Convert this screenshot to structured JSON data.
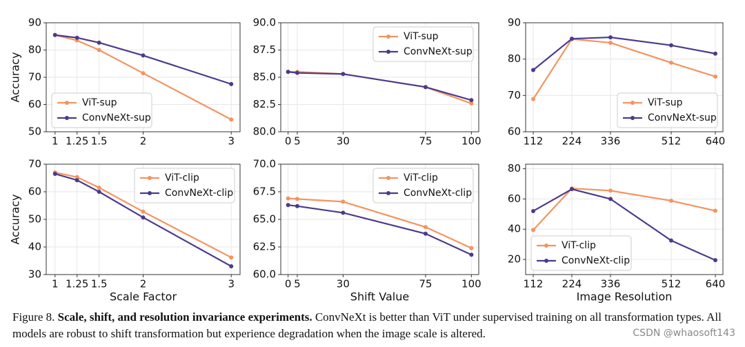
{
  "chart_data": [
    {
      "type": "line",
      "ylabel": "Accuracy",
      "x": [
        1,
        1.25,
        1.5,
        2,
        3
      ],
      "xlim": [
        0.9,
        3.1
      ],
      "xticks": [
        1,
        1.25,
        1.5,
        2,
        3
      ],
      "ylim": [
        50,
        90
      ],
      "yticks": [
        50,
        60,
        70,
        80,
        90
      ],
      "grid": true,
      "legend": "lower left",
      "series": [
        {
          "name": "ViT-sup",
          "color": "#f4935e",
          "values": [
            85.5,
            83.5,
            80,
            71.5,
            54.5
          ]
        },
        {
          "name": "ConvNeXt-sup",
          "color": "#4b3a8c",
          "values": [
            85.5,
            84.5,
            82.7,
            78,
            67.5
          ]
        }
      ]
    },
    {
      "type": "line",
      "x": [
        0,
        5,
        30,
        75,
        100
      ],
      "xlim": [
        -4,
        104
      ],
      "xticks": [
        0,
        5,
        30,
        75,
        100
      ],
      "ylim": [
        80,
        90
      ],
      "yticks": [
        {
          "value": 80,
          "label": "80.0"
        },
        82.5,
        {
          "value": 85,
          "label": "85.0"
        },
        87.5,
        {
          "value": 90,
          "label": "90.0"
        }
      ],
      "grid": true,
      "legend": "upper right",
      "series": [
        {
          "name": "ViT-sup",
          "color": "#f4935e",
          "values": [
            85.5,
            85.5,
            85.3,
            84.1,
            82.6
          ]
        },
        {
          "name": "ConvNeXt-sup",
          "color": "#4b3a8c",
          "values": [
            85.5,
            85.4,
            85.3,
            84.1,
            82.9
          ]
        }
      ]
    },
    {
      "type": "line",
      "x": [
        112,
        224,
        336,
        512,
        640
      ],
      "xlim": [
        90,
        662
      ],
      "xticks": [
        112,
        224,
        336,
        512,
        640
      ],
      "ylim": [
        60,
        90
      ],
      "yticks": [
        60,
        70,
        80,
        90
      ],
      "grid": true,
      "legend": "lower right",
      "series": [
        {
          "name": "ViT-sup",
          "color": "#f4935e",
          "values": [
            69,
            85.5,
            84.5,
            79,
            75.2
          ]
        },
        {
          "name": "ConvNeXt-sup",
          "color": "#4b3a8c",
          "values": [
            77,
            85.6,
            86,
            83.8,
            81.5
          ]
        }
      ]
    },
    {
      "type": "line",
      "ylabel": "Accuracy",
      "xlabel": "Scale Factor",
      "x": [
        1,
        1.25,
        1.5,
        2,
        3
      ],
      "xlim": [
        0.9,
        3.1
      ],
      "xticks": [
        1,
        1.25,
        1.5,
        2,
        3
      ],
      "ylim": [
        30,
        70
      ],
      "yticks": [
        30,
        40,
        50,
        60,
        70
      ],
      "grid": true,
      "legend": "upper right",
      "series": [
        {
          "name": "ViT-clip",
          "color": "#f4935e",
          "values": [
            67,
            65.3,
            61.5,
            52.8,
            36.2
          ]
        },
        {
          "name": "ConvNeXt-clip",
          "color": "#4b3a8c",
          "values": [
            66.5,
            64.2,
            60,
            50.7,
            33
          ]
        }
      ]
    },
    {
      "type": "line",
      "xlabel": "Shift Value",
      "x": [
        0,
        5,
        30,
        75,
        100
      ],
      "xlim": [
        -4,
        104
      ],
      "xticks": [
        0,
        5,
        30,
        75,
        100
      ],
      "ylim": [
        60,
        70
      ],
      "yticks": [
        {
          "value": 60,
          "label": "60.0"
        },
        62.5,
        {
          "value": 65,
          "label": "65.0"
        },
        67.5,
        {
          "value": 70,
          "label": "70.0"
        }
      ],
      "grid": true,
      "legend": "upper right",
      "series": [
        {
          "name": "ViT-clip",
          "color": "#f4935e",
          "values": [
            66.9,
            66.85,
            66.6,
            64.3,
            62.4
          ]
        },
        {
          "name": "ConvNeXt-clip",
          "color": "#4b3a8c",
          "values": [
            66.3,
            66.2,
            65.6,
            63.7,
            61.8
          ]
        }
      ]
    },
    {
      "type": "line",
      "xlabel": "Image Resolution",
      "x": [
        112,
        224,
        336,
        512,
        640
      ],
      "xlim": [
        90,
        662
      ],
      "xticks": [
        112,
        224,
        336,
        512,
        640
      ],
      "ylim": [
        10,
        83
      ],
      "yticks": [
        20,
        40,
        60,
        80
      ],
      "grid": true,
      "legend": "lower left",
      "series": [
        {
          "name": "ViT-clip",
          "color": "#f4935e",
          "values": [
            39.5,
            67,
            65.5,
            58.8,
            52.2
          ]
        },
        {
          "name": "ConvNeXt-clip",
          "color": "#4b3a8c",
          "values": [
            52,
            66.5,
            60,
            32.5,
            19.5
          ]
        }
      ]
    }
  ],
  "caption": {
    "label": "Figure 8.",
    "heading": "Scale, shift, and resolution invariance experiments.",
    "text": "ConvNeXt is better than ViT under supervised training on all transformation types. All models are robust to shift transformation but experience degradation when the image scale is altered."
  },
  "watermark": "CSDN @whaosoft143"
}
